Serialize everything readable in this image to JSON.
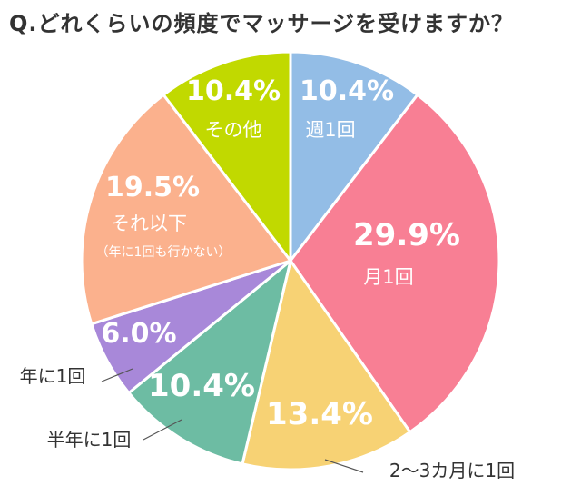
{
  "title": "Q.どれくらいの頻度でマッサージを受けますか？",
  "chart_data": {
    "type": "pie",
    "title": "Q.どれくらいの頻度でマッサージを受けますか？",
    "slices": [
      {
        "label": "週1回",
        "value": 10.4,
        "value_label": "10.4%",
        "color": "#93bde6",
        "sublabel": ""
      },
      {
        "label": "月1回",
        "value": 29.9,
        "value_label": "29.9%",
        "color": "#f87f94",
        "sublabel": ""
      },
      {
        "label": "2〜3カ月に1回",
        "value": 13.4,
        "value_label": "13.4%",
        "color": "#f7d274",
        "sublabel": ""
      },
      {
        "label": "半年に1回",
        "value": 10.4,
        "value_label": "10.4%",
        "color": "#6dbca3",
        "sublabel": ""
      },
      {
        "label": "年に1回",
        "value": 6.0,
        "value_label": "6.0%",
        "color": "#a888d9",
        "sublabel": ""
      },
      {
        "label": "それ以下",
        "value": 19.5,
        "value_label": "19.5%",
        "color": "#fbb18d",
        "sublabel": "（年に1回も行かない）"
      },
      {
        "label": "その他",
        "value": 10.4,
        "value_label": "10.4%",
        "color": "#c1d900",
        "sublabel": ""
      }
    ]
  }
}
